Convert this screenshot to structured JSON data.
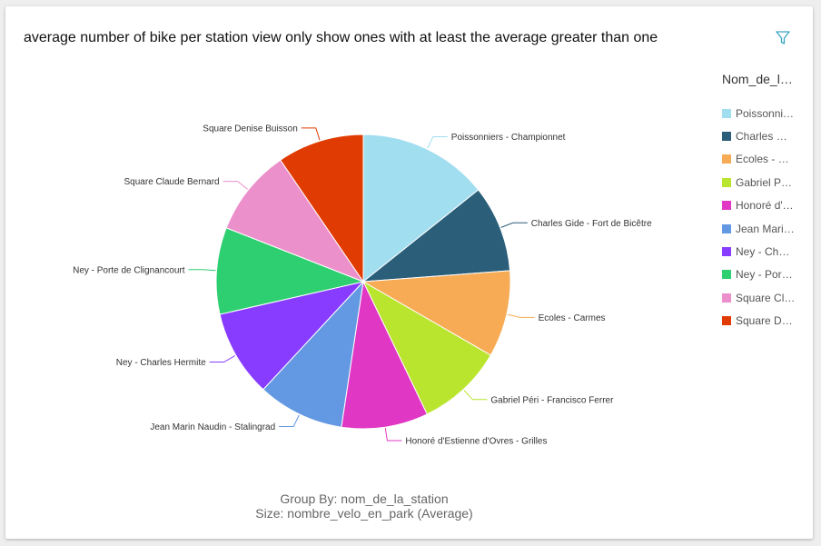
{
  "chart_data": {
    "type": "pie",
    "title": "average number of bike per station view only show ones with at least the average greater than one",
    "legend_title": "Nom_de_la_station",
    "legend_position": "right",
    "categories": [
      "Poissonniers - Championnet",
      "Charles Gide - Fort de Bicêtre",
      "Ecoles - Carmes",
      "Gabriel Péri - Francisco Ferrer",
      "Honoré d'Estienne d'Ovres - Grilles",
      "Jean Marin Naudin - Stalingrad",
      "Ney - Charles Hermite",
      "Ney - Porte de Clignancourt",
      "Square Claude Bernard",
      "Square Denise Buisson"
    ],
    "values": [
      1.5,
      1.0,
      1.0,
      1.0,
      1.0,
      1.0,
      1.0,
      1.0,
      1.0,
      1.0
    ],
    "colors": [
      "#a1def0",
      "#2a5e79",
      "#f7ab55",
      "#b9e52f",
      "#e038c4",
      "#6398e2",
      "#873cff",
      "#2ecf70",
      "#ec90cb",
      "#e03b02"
    ],
    "group_by_text": "Group By: nom_de_la_station",
    "size_text": "Size: nombre_velo_en_park (Average)"
  },
  "toolbar": {
    "filter_icon": "filter-icon"
  }
}
